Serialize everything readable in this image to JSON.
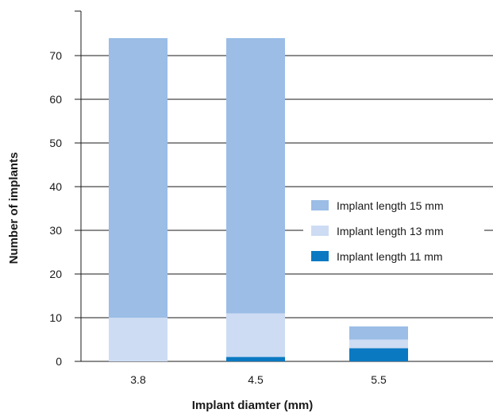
{
  "chart_data": {
    "type": "bar",
    "stacked": true,
    "title": "",
    "xlabel": "Implant diamter (mm)",
    "ylabel": "Number of implants",
    "categories": [
      "3.8",
      "4.5",
      "5.5"
    ],
    "ylim": [
      0,
      80
    ],
    "yticks": [
      0,
      10,
      20,
      30,
      40,
      50,
      60,
      70
    ],
    "grid": true,
    "legend_position": "right",
    "series": [
      {
        "name": "Implant length 11 mm",
        "color": "#0a79c2",
        "values": [
          0,
          1,
          3
        ]
      },
      {
        "name": "Implant length 13 mm",
        "color": "#cddcf3",
        "values": [
          10,
          10,
          2
        ]
      },
      {
        "name": "Implant length 15 mm",
        "color": "#9bbde6",
        "values": [
          64,
          63,
          3
        ]
      }
    ],
    "legend_order": [
      2,
      1,
      0
    ]
  }
}
